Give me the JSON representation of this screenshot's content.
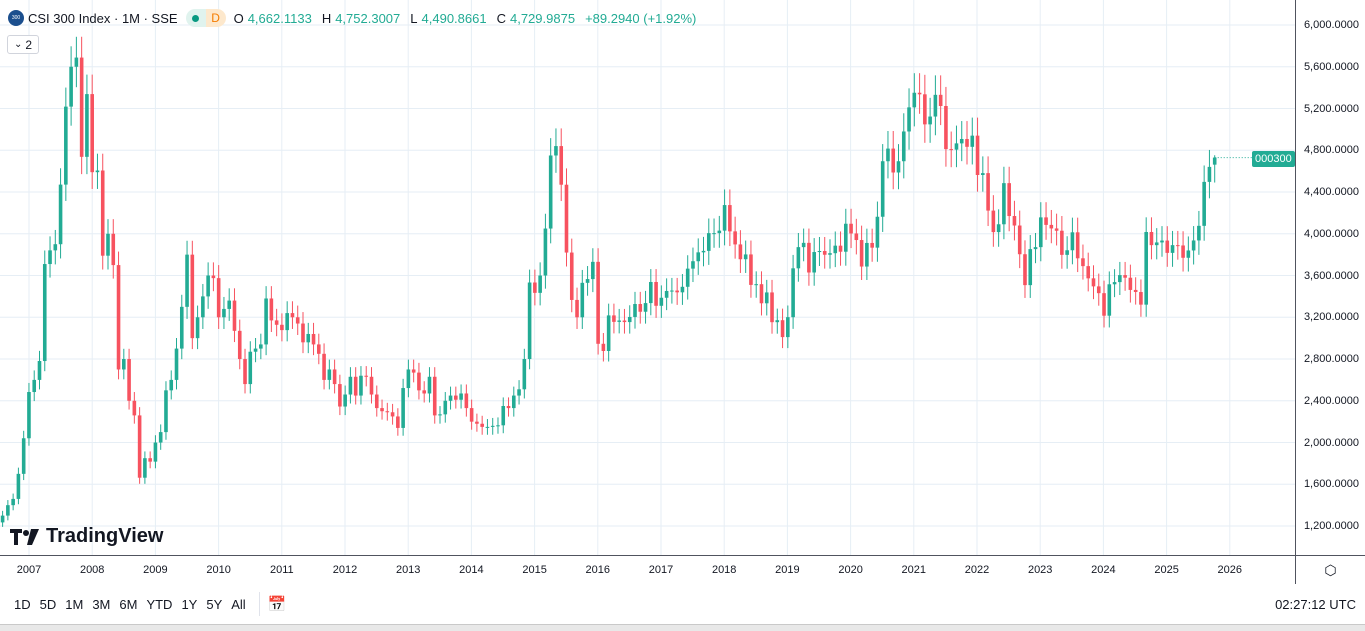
{
  "header": {
    "logo_text": "300",
    "title": "CSI 300 Index · 1M · SSE",
    "status_letter": "D",
    "o_label": "O",
    "o": "4,662.1133",
    "h_label": "H",
    "h": "4,752.3007",
    "l_label": "L",
    "l": "4,490.8661",
    "c_label": "C",
    "c": "4,729.9875",
    "change": "+89.2940 (+1.92%)"
  },
  "collapse_label": "2",
  "brand": "TradingView",
  "price_badge": "000300",
  "toolbar": {
    "ranges": [
      "1D",
      "5D",
      "1M",
      "3M",
      "6M",
      "YTD",
      "1Y",
      "5Y",
      "All"
    ],
    "clock": "02:27:12 UTC"
  },
  "colors": {
    "up": "#22ab94",
    "down": "#f7525f",
    "grid": "#e6eef5"
  },
  "chart_data": {
    "type": "candlestick",
    "interval": "1M",
    "start": "2006-08",
    "y_ticks": [
      "1,200.0000",
      "1,600.0000",
      "2,000.0000",
      "2,400.0000",
      "2,800.0000",
      "3,200.0000",
      "3,600.0000",
      "4,000.0000",
      "4,400.0000",
      "4,800.0000",
      "5,200.0000",
      "5,600.0000",
      "6,000.0000"
    ],
    "ylim": [
      1100,
      6150
    ],
    "x_ticks": [
      "2007",
      "2008",
      "2009",
      "2010",
      "2011",
      "2012",
      "2013",
      "2014",
      "2015",
      "2016",
      "2017",
      "2018",
      "2019",
      "2020",
      "2021",
      "2022",
      "2023",
      "2024",
      "2025",
      "2026"
    ],
    "grid": true,
    "closes": [
      1300,
      1400,
      1460,
      1700,
      2041,
      2484,
      2600,
      2781,
      3710,
      3841,
      3900,
      4471,
      5218,
      5600,
      5688,
      4737,
      5338,
      4590,
      4606,
      3790,
      4000,
      3700,
      2700,
      2800,
      2400,
      2260,
      1663,
      1850,
      1817,
      2000,
      2100,
      2500,
      2600,
      2900,
      3300,
      3800,
      3000,
      3200,
      3400,
      3600,
      3575,
      3200,
      3280,
      3360,
      3070,
      2800,
      2560,
      2870,
      2900,
      2940,
      3380,
      3170,
      3128,
      3077,
      3240,
      3200,
      3140,
      2960,
      3040,
      2940,
      2850,
      2600,
      2700,
      2560,
      2345,
      2460,
      2630,
      2450,
      2640,
      2630,
      2460,
      2330,
      2300,
      2290,
      2250,
      2140,
      2522,
      2700,
      2670,
      2500,
      2470,
      2630,
      2260,
      2270,
      2400,
      2450,
      2410,
      2470,
      2330,
      2200,
      2180,
      2150,
      2150,
      2160,
      2165,
      2350,
      2330,
      2450,
      2510,
      2800,
      3533,
      3434,
      3600,
      4050,
      4750,
      4840,
      4470,
      3820,
      3366,
      3200,
      3530,
      3566,
      3731,
      2946,
      2877,
      3218,
      3156,
      3169,
      3154,
      3203,
      3327,
      3253,
      3336,
      3538,
      3310,
      3387,
      3452,
      3456,
      3439,
      3492,
      3666,
      3737,
      3822,
      3836,
      4006,
      4006,
      4030,
      4275,
      4023,
      3898,
      3756,
      3802,
      3510,
      3517,
      3334,
      3438,
      3153,
      3172,
      3010,
      3201,
      3669,
      3872,
      3913,
      3629,
      3825,
      3835,
      3799,
      3814,
      3886,
      3828,
      4096,
      4003,
      3940,
      3686,
      3912,
      3867,
      4163,
      4695,
      4816,
      4587,
      4695,
      4980,
      5211,
      5351,
      5336,
      5048,
      5123,
      5331,
      5224,
      4811,
      4806,
      4866,
      4908,
      4833,
      4940,
      4563,
      4581,
      4222,
      4016,
      4091,
      4485,
      4170,
      4079,
      3804,
      3508,
      3853,
      3872,
      4157,
      4085,
      4051,
      4029,
      3798,
      3842,
      4014,
      3765,
      3690,
      3573,
      3496,
      3431,
      3215,
      3516,
      3537,
      3604,
      3579,
      3462,
      3442,
      3321,
      4017,
      3891,
      3917,
      3935,
      3817,
      3891,
      3888,
      3770,
      3840,
      3936,
      4076,
      4497,
      4640.7,
      4729.99
    ],
    "last_candle": {
      "open": 4662.1133,
      "high": 4752.3007,
      "low": 4490.8661,
      "close": 4729.9875
    }
  }
}
